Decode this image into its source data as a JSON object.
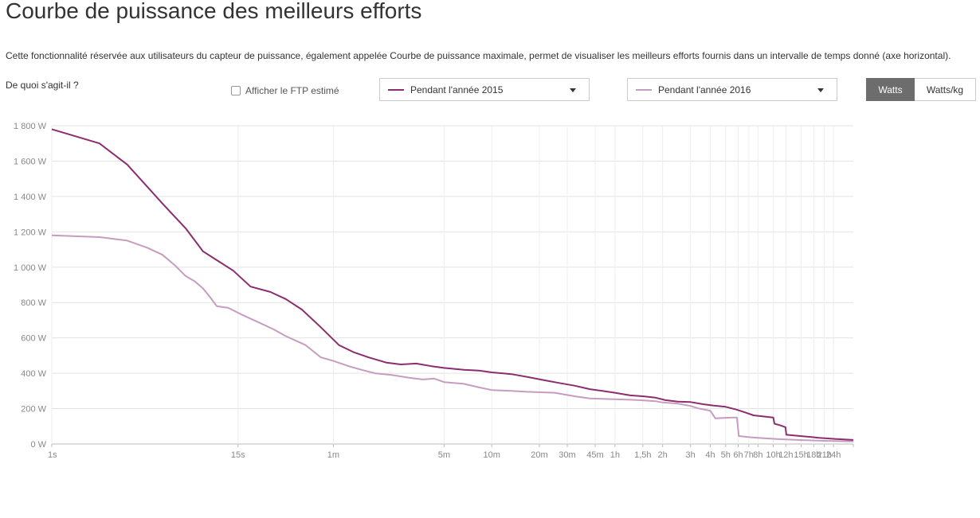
{
  "title": "Courbe de puissance des meilleurs efforts",
  "description": "Cette fonctionnalité réservée aux utilisateurs du capteur de puissance, également appelée Courbe de puissance maximale, permet de visualiser les meilleurs efforts fournis dans un intervalle de temps donné (axe horizontal).",
  "help_link": "De quoi s'agit-il ?",
  "ftp_checkbox": {
    "label": "Afficher le FTP estimé",
    "checked": false
  },
  "period_selects": [
    {
      "label": "Pendant l'année 2015",
      "color": "#8b2d6e"
    },
    {
      "label": "Pendant l'année 2016",
      "color": "#c79cc0"
    }
  ],
  "unit_toggle": {
    "options": [
      "Watts",
      "Watts/kg"
    ],
    "selected": "Watts"
  },
  "chart_data": {
    "type": "line",
    "x_scale": "log",
    "xlim_seconds": [
      1,
      115200
    ],
    "ylim": [
      0,
      1800
    ],
    "grid": true,
    "y_ticks": [
      {
        "value": 0,
        "label": "0 W"
      },
      {
        "value": 200,
        "label": "200 W"
      },
      {
        "value": 400,
        "label": "400 W"
      },
      {
        "value": 600,
        "label": "600 W"
      },
      {
        "value": 800,
        "label": "800 W"
      },
      {
        "value": 1000,
        "label": "1 000 W"
      },
      {
        "value": 1200,
        "label": "1 200 W"
      },
      {
        "value": 1400,
        "label": "1 400 W"
      },
      {
        "value": 1600,
        "label": "1 600 W"
      },
      {
        "value": 1800,
        "label": "1 800 W"
      }
    ],
    "x_ticks": [
      {
        "seconds": 1,
        "label": "1s"
      },
      {
        "seconds": 15,
        "label": "15s"
      },
      {
        "seconds": 60,
        "label": "1m"
      },
      {
        "seconds": 300,
        "label": "5m"
      },
      {
        "seconds": 600,
        "label": "10m"
      },
      {
        "seconds": 1200,
        "label": "20m"
      },
      {
        "seconds": 1800,
        "label": "30m"
      },
      {
        "seconds": 2700,
        "label": "45m"
      },
      {
        "seconds": 3600,
        "label": "1h"
      },
      {
        "seconds": 5400,
        "label": "1,5h"
      },
      {
        "seconds": 7200,
        "label": "2h"
      },
      {
        "seconds": 10800,
        "label": "3h"
      },
      {
        "seconds": 14400,
        "label": "4h"
      },
      {
        "seconds": 18000,
        "label": "5h"
      },
      {
        "seconds": 21600,
        "label": "6h"
      },
      {
        "seconds": 25200,
        "label": "7h"
      },
      {
        "seconds": 28800,
        "label": "8h"
      },
      {
        "seconds": 36000,
        "label": "10h"
      },
      {
        "seconds": 43200,
        "label": "12h"
      },
      {
        "seconds": 54000,
        "label": "15h"
      },
      {
        "seconds": 64800,
        "label": "18h"
      },
      {
        "seconds": 75600,
        "label": "21h"
      },
      {
        "seconds": 86400,
        "label": "24h"
      }
    ],
    "series": [
      {
        "name": "Pendant l'année 2015",
        "color": "#8b2d6e",
        "points": [
          [
            1,
            1780
          ],
          [
            2,
            1700
          ],
          [
            3,
            1580
          ],
          [
            5,
            1360
          ],
          [
            7,
            1220
          ],
          [
            9,
            1090
          ],
          [
            11,
            1040
          ],
          [
            14,
            980
          ],
          [
            18,
            890
          ],
          [
            24,
            860
          ],
          [
            30,
            820
          ],
          [
            38,
            760
          ],
          [
            50,
            660
          ],
          [
            65,
            560
          ],
          [
            80,
            520
          ],
          [
            100,
            490
          ],
          [
            130,
            460
          ],
          [
            160,
            450
          ],
          [
            200,
            455
          ],
          [
            250,
            440
          ],
          [
            300,
            430
          ],
          [
            400,
            420
          ],
          [
            500,
            415
          ],
          [
            600,
            405
          ],
          [
            800,
            395
          ],
          [
            1000,
            380
          ],
          [
            1300,
            360
          ],
          [
            1600,
            345
          ],
          [
            2000,
            330
          ],
          [
            2500,
            310
          ],
          [
            3000,
            300
          ],
          [
            3600,
            290
          ],
          [
            4500,
            275
          ],
          [
            5400,
            270
          ],
          [
            6500,
            262
          ],
          [
            7500,
            248
          ],
          [
            9000,
            240
          ],
          [
            10800,
            237
          ],
          [
            13000,
            225
          ],
          [
            15000,
            218
          ],
          [
            18000,
            210
          ],
          [
            21000,
            195
          ],
          [
            24000,
            178
          ],
          [
            27000,
            162
          ],
          [
            32000,
            155
          ],
          [
            36000,
            150
          ],
          [
            36600,
            115
          ],
          [
            40000,
            105
          ],
          [
            43000,
            95
          ],
          [
            43500,
            52
          ],
          [
            55000,
            44
          ],
          [
            70000,
            35
          ],
          [
            90000,
            28
          ],
          [
            115200,
            23
          ]
        ]
      },
      {
        "name": "Pendant l'année 2016",
        "color": "#c79cc0",
        "points": [
          [
            1,
            1180
          ],
          [
            2,
            1170
          ],
          [
            3,
            1150
          ],
          [
            4,
            1110
          ],
          [
            5,
            1070
          ],
          [
            6,
            1010
          ],
          [
            7,
            950
          ],
          [
            8,
            920
          ],
          [
            9,
            880
          ],
          [
            10,
            830
          ],
          [
            11,
            780
          ],
          [
            13,
            770
          ],
          [
            16,
            730
          ],
          [
            20,
            690
          ],
          [
            25,
            650
          ],
          [
            30,
            610
          ],
          [
            40,
            560
          ],
          [
            50,
            490
          ],
          [
            60,
            470
          ],
          [
            75,
            440
          ],
          [
            90,
            420
          ],
          [
            110,
            400
          ],
          [
            140,
            390
          ],
          [
            180,
            375
          ],
          [
            220,
            365
          ],
          [
            260,
            370
          ],
          [
            300,
            350
          ],
          [
            400,
            340
          ],
          [
            500,
            320
          ],
          [
            600,
            305
          ],
          [
            800,
            300
          ],
          [
            1000,
            295
          ],
          [
            1500,
            290
          ],
          [
            2000,
            270
          ],
          [
            2500,
            258
          ],
          [
            3000,
            255
          ],
          [
            3600,
            253
          ],
          [
            4500,
            250
          ],
          [
            5400,
            247
          ],
          [
            6500,
            242
          ],
          [
            7200,
            235
          ],
          [
            9000,
            228
          ],
          [
            10800,
            215
          ],
          [
            12000,
            202
          ],
          [
            14400,
            188
          ],
          [
            15500,
            145
          ],
          [
            18000,
            148
          ],
          [
            20000,
            150
          ],
          [
            21200,
            150
          ],
          [
            21800,
            45
          ],
          [
            26000,
            38
          ],
          [
            32000,
            32
          ],
          [
            40000,
            27
          ],
          [
            55000,
            22
          ],
          [
            75000,
            18
          ],
          [
            115200,
            15
          ]
        ]
      }
    ]
  }
}
